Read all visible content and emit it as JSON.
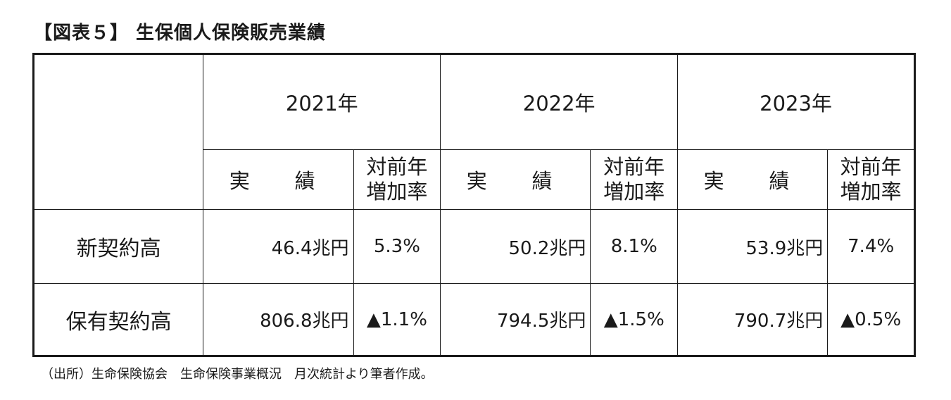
{
  "title": "【図表５】 生保個人保険販売業績",
  "table": {
    "years": [
      "2021年",
      "2022年",
      "2023年"
    ],
    "sub_headers": {
      "actual": "実　績",
      "rate_line1": "対前年",
      "rate_line2": "増加率"
    },
    "rows": [
      {
        "label": "新契約高",
        "cells": [
          {
            "value": "46.4兆円",
            "rate": "5.3%"
          },
          {
            "value": "50.2兆円",
            "rate": "8.1%"
          },
          {
            "value": "53.9兆円",
            "rate": "7.4%"
          }
        ]
      },
      {
        "label": "保有契約高",
        "cells": [
          {
            "value": "806.8兆円",
            "rate": "▲1.1%"
          },
          {
            "value": "794.5兆円",
            "rate": "▲1.5%"
          },
          {
            "value": "790.7兆円",
            "rate": "▲0.5%"
          }
        ]
      }
    ]
  },
  "source": "（出所）生命保険協会　生命保険事業概況　月次統計より筆者作成。"
}
